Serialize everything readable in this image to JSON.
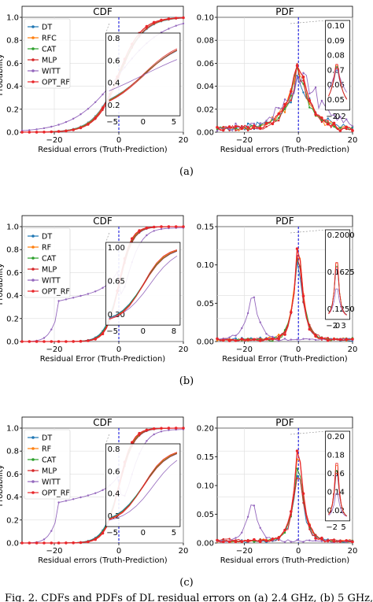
{
  "figure": {
    "caption": "Fig. 2.  CDFs and PDFs of DL residual errors on (a) 2.4 GHz, (b) 5 GHz,",
    "colors": {
      "DT": "#1f77b4",
      "RF": "#ff7f0e",
      "CAT": "#2ca02c",
      "MLP": "#d62728",
      "WITT": "#9467bd",
      "OPT_RF": "#e8262a",
      "zero_line": "#0000dd"
    },
    "rows": [
      {
        "label": "(a)",
        "cdf": {
          "title": "CDF",
          "xlabel": "Residual errors (Truth-Prediction)",
          "ylabel": "Probability",
          "xticks": [
            "−20",
            "0",
            "20"
          ],
          "yticks": [
            "0.0",
            "0.2",
            "0.4",
            "0.6",
            "0.8",
            "1.0"
          ],
          "legend": [
            "DT",
            "RFC",
            "CAT",
            "MLP",
            "WITT",
            "OPT_RF"
          ],
          "inset": {
            "yticks": [
              "0.8",
              "0.6",
              "0.4",
              "0.2"
            ],
            "xticks": [
              "−5",
              "0",
              "5"
            ]
          }
        },
        "pdf": {
          "title": "PDF",
          "xlabel": "Residual errors (Truth-Prediction)",
          "xticks": [
            "−20",
            "0",
            "20"
          ],
          "yticks": [
            "0.00",
            "0.02",
            "0.04",
            "0.06",
            "0.08",
            "0.10"
          ],
          "inset": {
            "yticks": [
              "0.10",
              "0.09",
              "0.08",
              "0.07",
              "0.06",
              "0.05"
            ],
            "xticks": [
              "−2",
              "0",
              "2"
            ]
          }
        }
      },
      {
        "label": "(b)",
        "cdf": {
          "title": "CDF",
          "xlabel": "Residual Error (Truth-Prediction)",
          "ylabel": "Probability",
          "xticks": [
            "−20",
            "0",
            "20"
          ],
          "yticks": [
            "0.0",
            "0.2",
            "0.4",
            "0.6",
            "0.8",
            "1.0"
          ],
          "legend": [
            "DT",
            "RF",
            "CAT",
            "MLP",
            "WITT",
            "OPT_RF"
          ],
          "inset": {
            "yticks": [
              "1.00",
              "0.65",
              "0.30"
            ],
            "xticks": [
              "−5",
              "0",
              "8"
            ]
          }
        },
        "pdf": {
          "title": "PDF",
          "xlabel": "Residual Error (Truth-Prediction)",
          "xticks": [
            "−20",
            "0",
            "20"
          ],
          "yticks": [
            "0.00",
            "0.05",
            "0.10",
            "0.15"
          ],
          "inset": {
            "yticks": [
              "0.2000",
              "0.1625",
              "0.1250"
            ],
            "xticks": [
              "−2",
              "0",
              "3"
            ]
          }
        }
      },
      {
        "label": "(c)",
        "cdf": {
          "title": "CDF",
          "xlabel": "Residual errors (Truth-Prediction)",
          "ylabel": "Probability",
          "xticks": [
            "−20",
            "0",
            "20"
          ],
          "yticks": [
            "0.0",
            "0.2",
            "0.4",
            "0.6",
            "0.8",
            "1.0"
          ],
          "legend": [
            "DT",
            "RF",
            "CAT",
            "MLP",
            "WITT",
            "OPT_RF"
          ],
          "inset": {
            "yticks": [
              "0.8",
              "0.6",
              "0.4",
              "0.2"
            ],
            "xticks": [
              "−5",
              "0",
              "5"
            ]
          }
        },
        "pdf": {
          "title": "PDF",
          "xlabel": "Residual errors (Truth-Prediction)",
          "xticks": [
            "−20",
            "0",
            "20"
          ],
          "yticks": [
            "0.00",
            "0.05",
            "0.10",
            "0.15",
            "0.20"
          ],
          "inset": {
            "yticks": [
              "0.20",
              "0.18",
              "0.16",
              "0.14",
              "0.02"
            ],
            "xticks": [
              "−2",
              "5"
            ]
          }
        }
      }
    ]
  },
  "chart_data": [
    {
      "type": "line",
      "title": "CDF",
      "panel": "(a)",
      "xlabel": "Residual errors (Truth-Prediction)",
      "ylabel": "Probability",
      "xlim": [
        -30,
        20
      ],
      "ylim": [
        0,
        1
      ],
      "series": [
        {
          "name": "DT",
          "kind": "cdf",
          "center": 0,
          "scale": 4.0,
          "tail": 0
        },
        {
          "name": "RFC",
          "kind": "cdf",
          "center": 0,
          "scale": 3.9,
          "tail": 0
        },
        {
          "name": "CAT",
          "kind": "cdf",
          "center": 0,
          "scale": 3.8,
          "tail": 0
        },
        {
          "name": "MLP",
          "kind": "cdf",
          "center": 0.3,
          "scale": 3.7,
          "tail": 0
        },
        {
          "name": "WITT",
          "kind": "cdf",
          "center": 0,
          "scale": 7.0,
          "tail": 0
        },
        {
          "name": "OPT_RF",
          "kind": "cdf",
          "center": -0.2,
          "scale": 3.6,
          "tail": 0
        }
      ]
    },
    {
      "type": "line",
      "title": "PDF",
      "panel": "(a)",
      "xlabel": "Residual errors (Truth-Prediction)",
      "xlim": [
        -30,
        20
      ],
      "ylim": [
        0,
        0.1
      ],
      "series": [
        {
          "name": "DT",
          "kind": "pdf",
          "center": 0,
          "peak": 0.052,
          "width": 5.0,
          "noise": 0.006
        },
        {
          "name": "RFC",
          "kind": "pdf",
          "center": 0,
          "peak": 0.06,
          "width": 4.5,
          "noise": 0.005
        },
        {
          "name": "CAT",
          "kind": "pdf",
          "center": 0,
          "peak": 0.058,
          "width": 4.6,
          "noise": 0.005
        },
        {
          "name": "MLP",
          "kind": "pdf",
          "center": 0,
          "peak": 0.055,
          "width": 4.8,
          "noise": 0.006
        },
        {
          "name": "WITT",
          "kind": "pdf",
          "center": 2,
          "peak": 0.05,
          "width": 8.0,
          "noise": 0.008
        },
        {
          "name": "OPT_RF",
          "kind": "pdf",
          "center": 0,
          "peak": 0.062,
          "width": 4.3,
          "noise": 0.004
        }
      ]
    },
    {
      "type": "line",
      "title": "CDF",
      "panel": "(b)",
      "xlabel": "Residual Error (Truth-Prediction)",
      "ylabel": "Probability",
      "xlim": [
        -30,
        20
      ],
      "ylim": [
        0,
        1
      ],
      "series": [
        {
          "name": "DT",
          "kind": "cdf",
          "center": 0,
          "scale": 2.2,
          "tail": 0
        },
        {
          "name": "RF",
          "kind": "cdf",
          "center": 0,
          "scale": 2.0,
          "tail": 0
        },
        {
          "name": "CAT",
          "kind": "cdf",
          "center": 0,
          "scale": 2.1,
          "tail": 0
        },
        {
          "name": "MLP",
          "kind": "cdf",
          "center": 0.2,
          "scale": 2.1,
          "tail": 0
        },
        {
          "name": "WITT",
          "kind": "cdf",
          "center": 2,
          "scale": 2.5,
          "tail": 0.5
        },
        {
          "name": "OPT_RF",
          "kind": "cdf",
          "center": 0,
          "scale": 1.9,
          "tail": 0
        }
      ]
    },
    {
      "type": "line",
      "title": "PDF",
      "panel": "(b)",
      "xlabel": "Residual Error (Truth-Prediction)",
      "xlim": [
        -30,
        20
      ],
      "ylim": [
        0,
        0.2
      ],
      "series": [
        {
          "name": "DT",
          "kind": "pdf",
          "center": 0,
          "peak": 0.16,
          "width": 2.2,
          "noise": 0.01
        },
        {
          "name": "RF",
          "kind": "pdf",
          "center": 0,
          "peak": 0.19,
          "width": 2.0,
          "noise": 0.008
        },
        {
          "name": "CAT",
          "kind": "pdf",
          "center": 0,
          "peak": 0.175,
          "width": 2.1,
          "noise": 0.008
        },
        {
          "name": "MLP",
          "kind": "pdf",
          "center": 0,
          "peak": 0.17,
          "width": 2.1,
          "noise": 0.01
        },
        {
          "name": "WITT",
          "kind": "pdf",
          "center": -17,
          "peak": 0.09,
          "width": 2.5,
          "noise": 0.005
        },
        {
          "name": "OPT_RF",
          "kind": "pdf",
          "center": 0,
          "peak": 0.195,
          "width": 1.9,
          "noise": 0.006
        }
      ]
    },
    {
      "type": "line",
      "title": "CDF",
      "panel": "(c)",
      "xlabel": "Residual errors (Truth-Prediction)",
      "ylabel": "Probability",
      "xlim": [
        -30,
        20
      ],
      "ylim": [
        0,
        1
      ],
      "series": [
        {
          "name": "DT",
          "kind": "cdf",
          "center": 0,
          "scale": 2.4,
          "tail": 0
        },
        {
          "name": "RF",
          "kind": "cdf",
          "center": 0,
          "scale": 2.2,
          "tail": 0
        },
        {
          "name": "CAT",
          "kind": "cdf",
          "center": 0,
          "scale": 2.3,
          "tail": 0
        },
        {
          "name": "MLP",
          "kind": "cdf",
          "center": 0.2,
          "scale": 2.3,
          "tail": 0
        },
        {
          "name": "WITT",
          "kind": "cdf",
          "center": 3,
          "scale": 2.6,
          "tail": 0.5
        },
        {
          "name": "OPT_RF",
          "kind": "cdf",
          "center": 0,
          "scale": 2.1,
          "tail": 0
        }
      ]
    },
    {
      "type": "line",
      "title": "PDF",
      "panel": "(c)",
      "xlabel": "Residual errors (Truth-Prediction)",
      "xlim": [
        -30,
        20
      ],
      "ylim": [
        0,
        0.2
      ],
      "series": [
        {
          "name": "DT",
          "kind": "pdf",
          "center": 0,
          "peak": 0.14,
          "width": 2.4,
          "noise": 0.01
        },
        {
          "name": "RF",
          "kind": "pdf",
          "center": 0,
          "peak": 0.18,
          "width": 2.2,
          "noise": 0.008
        },
        {
          "name": "CAT",
          "kind": "pdf",
          "center": 0,
          "peak": 0.16,
          "width": 2.3,
          "noise": 0.008
        },
        {
          "name": "MLP",
          "kind": "pdf",
          "center": 0,
          "peak": 0.15,
          "width": 2.3,
          "noise": 0.01
        },
        {
          "name": "WITT",
          "kind": "pdf",
          "center": -17,
          "peak": 0.08,
          "width": 2.5,
          "noise": 0.005
        },
        {
          "name": "OPT_RF",
          "kind": "pdf",
          "center": 0,
          "peak": 0.19,
          "width": 2.1,
          "noise": 0.006
        }
      ]
    }
  ]
}
